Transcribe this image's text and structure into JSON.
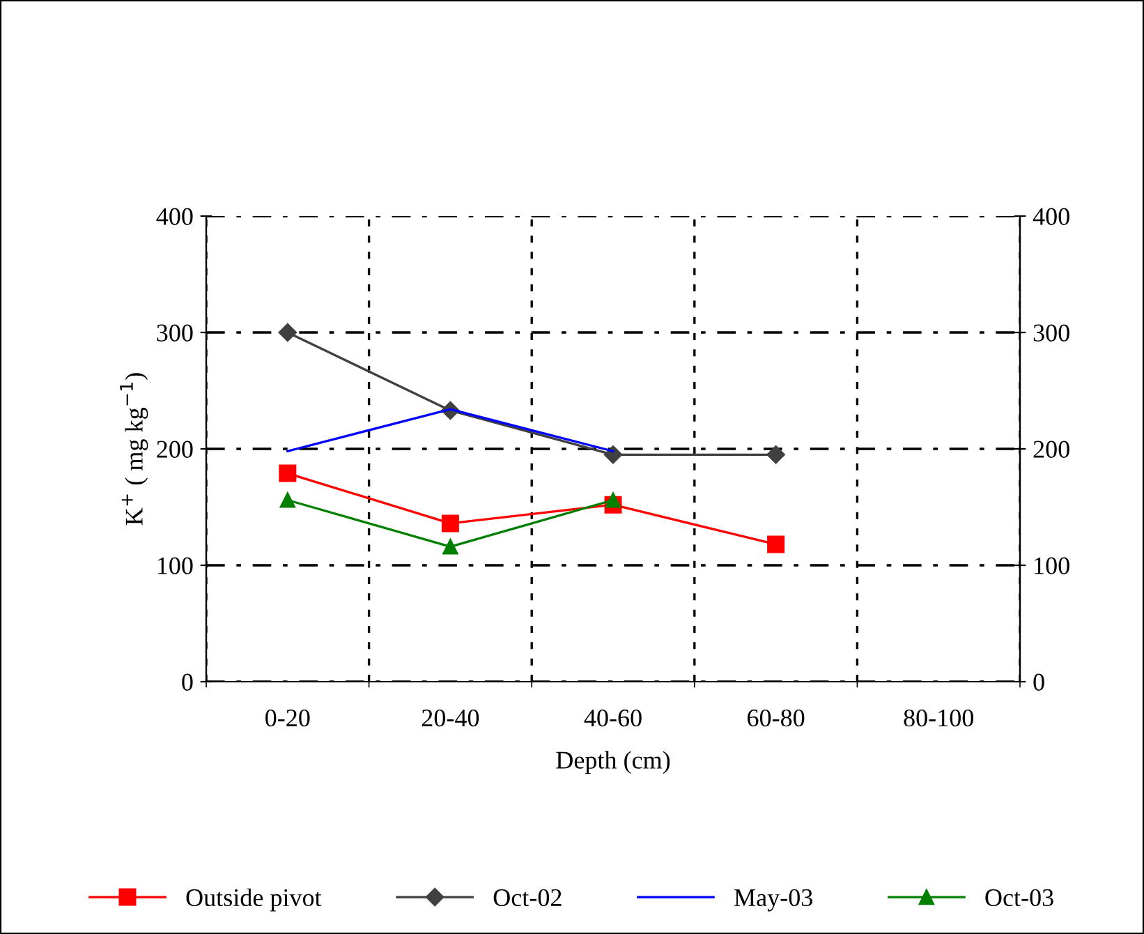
{
  "chart_data": {
    "type": "line",
    "xlabel": "Depth (cm)",
    "ylabel": "K$^{+}$ ( mg kg$^{−1}$)",
    "categories": [
      "0-20",
      "20-40",
      "40-60",
      "60-80",
      "80-100"
    ],
    "series": [
      {
        "name": "Outside pivot",
        "color": "#ff0000",
        "marker": "square",
        "values": [
          179,
          136,
          152,
          118,
          null
        ]
      },
      {
        "name": "Oct-02",
        "color": "#404040",
        "marker": "diamond",
        "values": [
          300,
          233,
          195,
          195,
          null
        ]
      },
      {
        "name": "May-03",
        "color": "#0000ff",
        "marker": "none",
        "values": [
          198,
          234,
          198,
          null,
          null
        ]
      },
      {
        "name": "Oct-03",
        "color": "#008000",
        "marker": "triangle",
        "values": [
          156,
          116,
          156,
          null,
          null
        ]
      }
    ],
    "ylim": [
      0,
      400
    ],
    "yticks": [
      0,
      100,
      200,
      300,
      400
    ],
    "y2lim": [
      0,
      400
    ],
    "y2ticks": [
      0,
      100,
      200,
      300,
      400
    ],
    "grid": true,
    "legend": "bottom",
    "line_style": "solid"
  }
}
